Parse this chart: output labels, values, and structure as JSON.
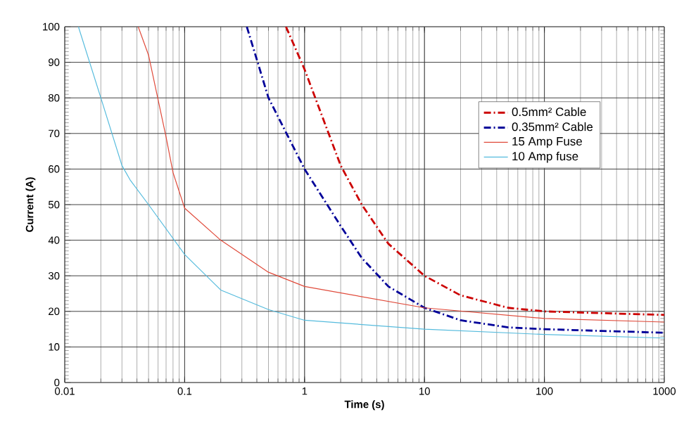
{
  "chart_data": {
    "type": "line",
    "xlabel": "Time (s)",
    "ylabel": "Current (A)",
    "log": "x",
    "grid": true,
    "legend": "right",
    "marker": "none",
    "xlim": [
      0.01,
      1000
    ],
    "xticks": [
      0.01,
      0.1,
      1,
      10,
      100,
      1000
    ],
    "ylim": [
      0,
      100
    ],
    "yticks": [
      0,
      10,
      20,
      30,
      40,
      50,
      60,
      70,
      80,
      90,
      100
    ],
    "series": [
      {
        "name": "0.5mm² Cable",
        "color": "#cc0000",
        "line_style": "dashed",
        "x": [
          0.7,
          1,
          2,
          3,
          5,
          10,
          20,
          50,
          100,
          300,
          1000
        ],
        "values": [
          100,
          88,
          61,
          50,
          39,
          30,
          24.5,
          21,
          20,
          19.5,
          19
        ]
      },
      {
        "name": "0.35mm² Cable",
        "color": "#000099",
        "line_style": "dashed",
        "x": [
          0.33,
          0.5,
          1,
          2,
          3,
          5,
          10,
          20,
          50,
          100,
          300,
          1000
        ],
        "values": [
          100,
          80,
          60,
          44,
          35,
          27,
          21,
          17.5,
          15.5,
          15,
          14.5,
          14
        ]
      },
      {
        "name": "15 Amp Fuse",
        "color": "#e04a3a",
        "line_style": "solid",
        "x": [
          0.041,
          0.05,
          0.07,
          0.08,
          0.1,
          0.2,
          0.5,
          1,
          10,
          100,
          1000
        ],
        "values": [
          100,
          92,
          69,
          59,
          49,
          40,
          31,
          27,
          21,
          18,
          17
        ]
      },
      {
        "name": "10 Amp fuse",
        "color": "#55bbdd",
        "line_style": "solid",
        "x": [
          0.013,
          0.02,
          0.03,
          0.035,
          0.05,
          0.1,
          0.2,
          0.5,
          1,
          10,
          100,
          1000
        ],
        "values": [
          100,
          80,
          61,
          57,
          50,
          36,
          26,
          20.5,
          17.5,
          15,
          13.5,
          12.5
        ]
      }
    ]
  }
}
